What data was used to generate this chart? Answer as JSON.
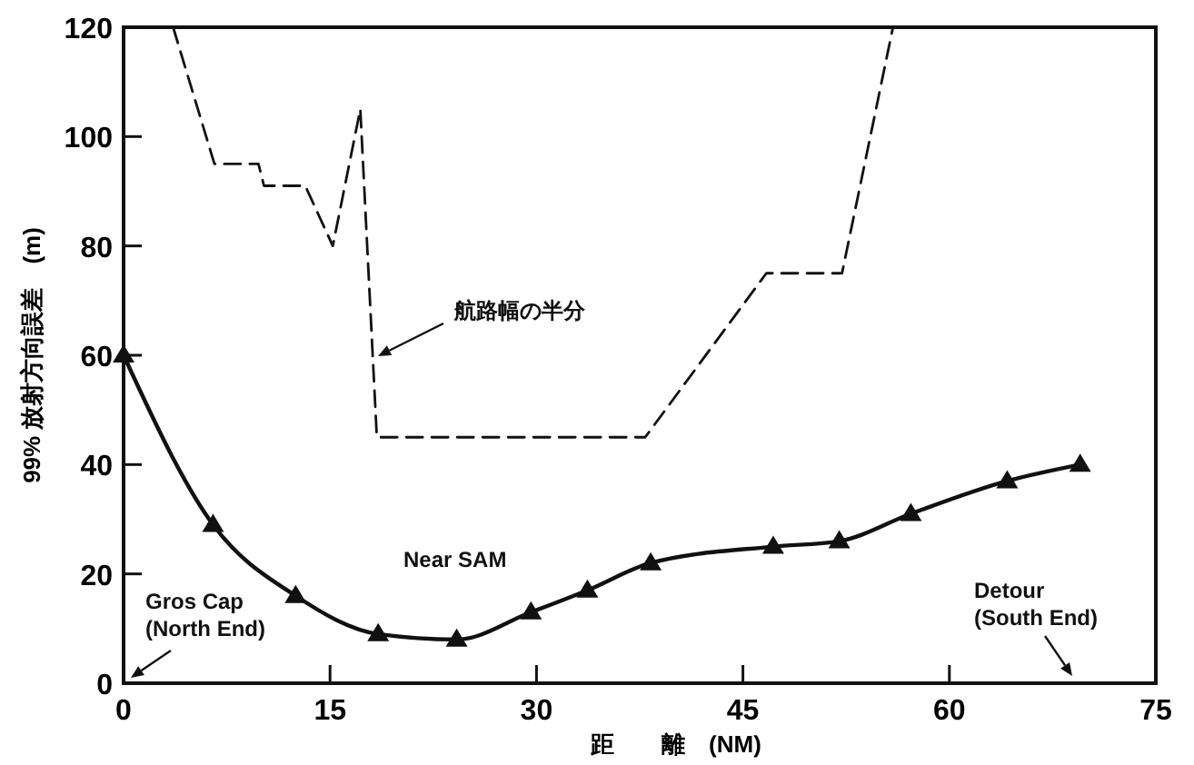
{
  "chart_data": {
    "type": "line",
    "xlabel": "距　　離　(NM)",
    "ylabel": "99% 放射方向誤差　(m)",
    "xlim": [
      0,
      75
    ],
    "ylim": [
      0,
      120
    ],
    "xticks": [
      0,
      15,
      30,
      45,
      60,
      75
    ],
    "yticks": [
      0,
      20,
      40,
      60,
      80,
      100,
      120
    ],
    "grid": false,
    "series": [
      {
        "color": "#111111",
        "line_style": "dashed",
        "marker": "none",
        "x": [
          3.6,
          6.6,
          9.8,
          10.2,
          13.2,
          15.2,
          17.2,
          18.1,
          18.4,
          37.9,
          46.7,
          52.2,
          55.9
        ],
        "values": [
          120,
          95,
          95,
          91,
          91,
          80,
          105,
          60,
          45,
          45,
          75,
          75,
          120
        ]
      },
      {
        "color": "#111111",
        "line_style": "solid",
        "marker": "triangle",
        "x": [
          0,
          6.5,
          12.5,
          18.5,
          24.2,
          29.6,
          33.7,
          38.3,
          47.2,
          52,
          57.2,
          64.2,
          69.5
        ],
        "values": [
          60,
          29,
          16,
          9,
          8,
          13,
          17,
          22,
          25,
          26,
          31,
          37,
          40
        ]
      }
    ],
    "annotations": [
      "航路幅の半分",
      "Near SAM",
      "Gros Cap\n(North End)",
      "Detour\n(South End)"
    ]
  }
}
